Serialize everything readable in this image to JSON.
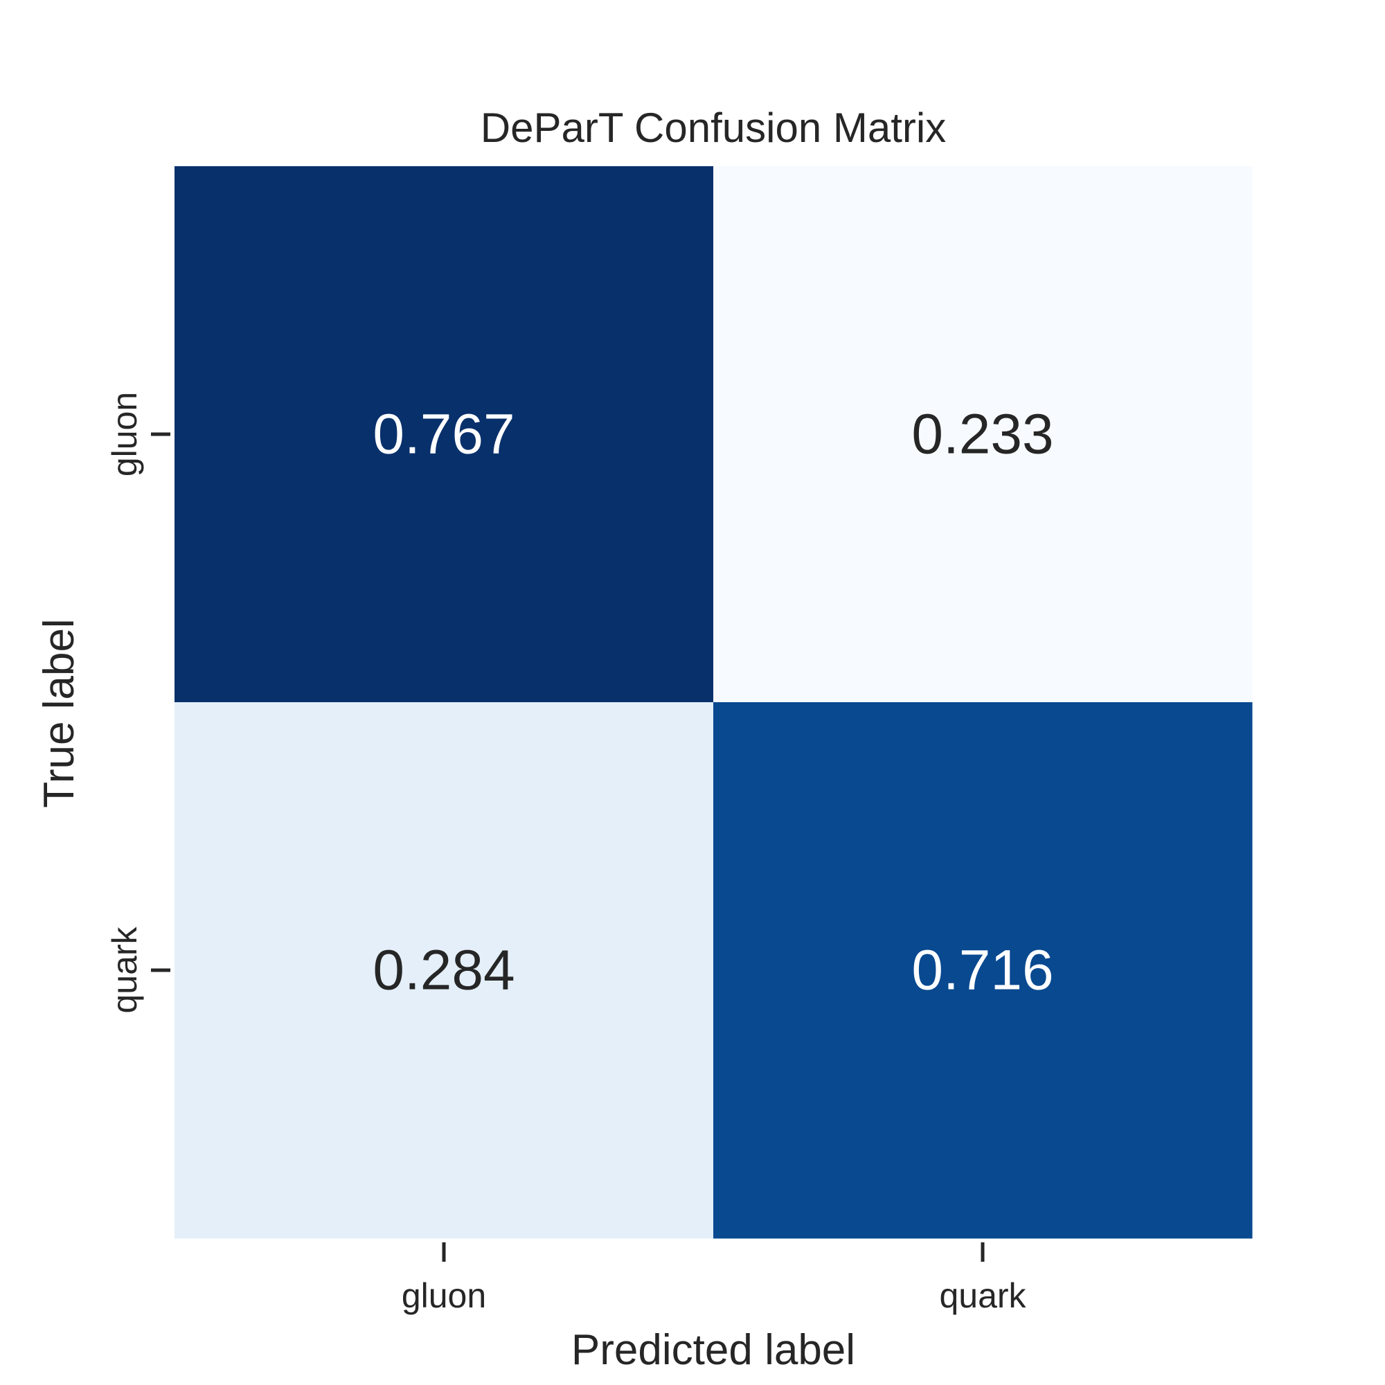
{
  "chart_data": {
    "type": "heatmap",
    "title": "DeParT Confusion Matrix",
    "xlabel": "Predicted label",
    "ylabel": "True label",
    "x_categories": [
      "gluon",
      "quark"
    ],
    "y_categories": [
      "gluon",
      "quark"
    ],
    "values": [
      [
        0.767,
        0.233
      ],
      [
        0.284,
        0.716
      ]
    ],
    "value_labels": [
      [
        "0.767",
        "0.233"
      ],
      [
        "0.284",
        "0.716"
      ]
    ],
    "colormap": "Blues",
    "colors": {
      "low": "#f7fbff",
      "high": "#08306b",
      "dark_text": "#262626",
      "light_text": "#ffffff"
    },
    "colorbar": false,
    "grid": false
  }
}
